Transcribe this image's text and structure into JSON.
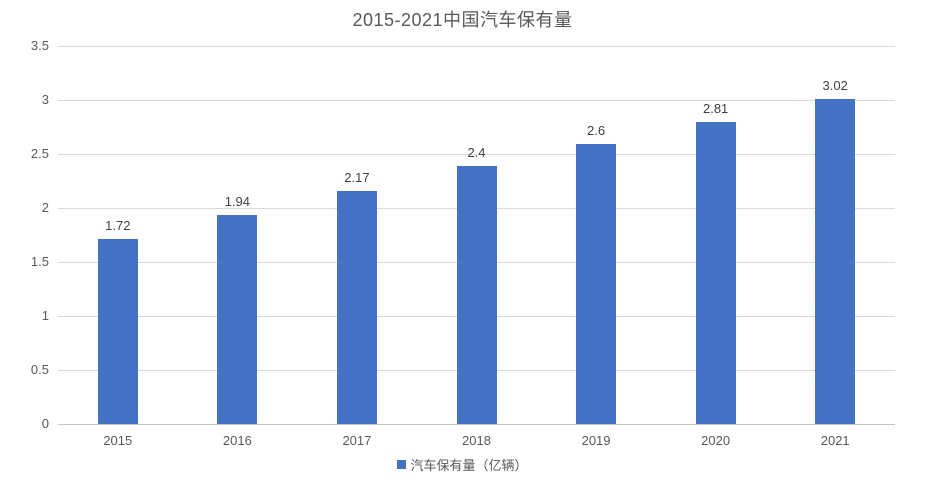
{
  "chart_data": {
    "type": "bar",
    "title": "2015-2021中国汽车保有量",
    "categories": [
      "2015",
      "2016",
      "2017",
      "2018",
      "2019",
      "2020",
      "2021"
    ],
    "values": [
      1.72,
      1.94,
      2.17,
      2.4,
      2.6,
      2.81,
      3.02
    ],
    "value_labels": [
      "1.72",
      "1.94",
      "2.17",
      "2.4",
      "2.6",
      "2.81",
      "3.02"
    ],
    "series_name": "汽车保有量（亿辆）",
    "xlabel": "",
    "ylabel": "",
    "ylim": [
      0,
      3.5
    ],
    "ytick_step": 0.5,
    "ytick_labels": [
      "0",
      "0.5",
      "1",
      "1.5",
      "2",
      "2.5",
      "3",
      "3.5"
    ],
    "grid": "horizontal",
    "legend_position": "bottom-center",
    "colors": {
      "bar": "#4472c4",
      "gridline": "#d9d9d9",
      "title_text": "#595959",
      "axis_text": "#595959",
      "data_label_text": "#404040",
      "background": "#ffffff"
    }
  },
  "legend": {
    "marker_icon": "square",
    "label": "汽车保有量（亿辆）"
  }
}
